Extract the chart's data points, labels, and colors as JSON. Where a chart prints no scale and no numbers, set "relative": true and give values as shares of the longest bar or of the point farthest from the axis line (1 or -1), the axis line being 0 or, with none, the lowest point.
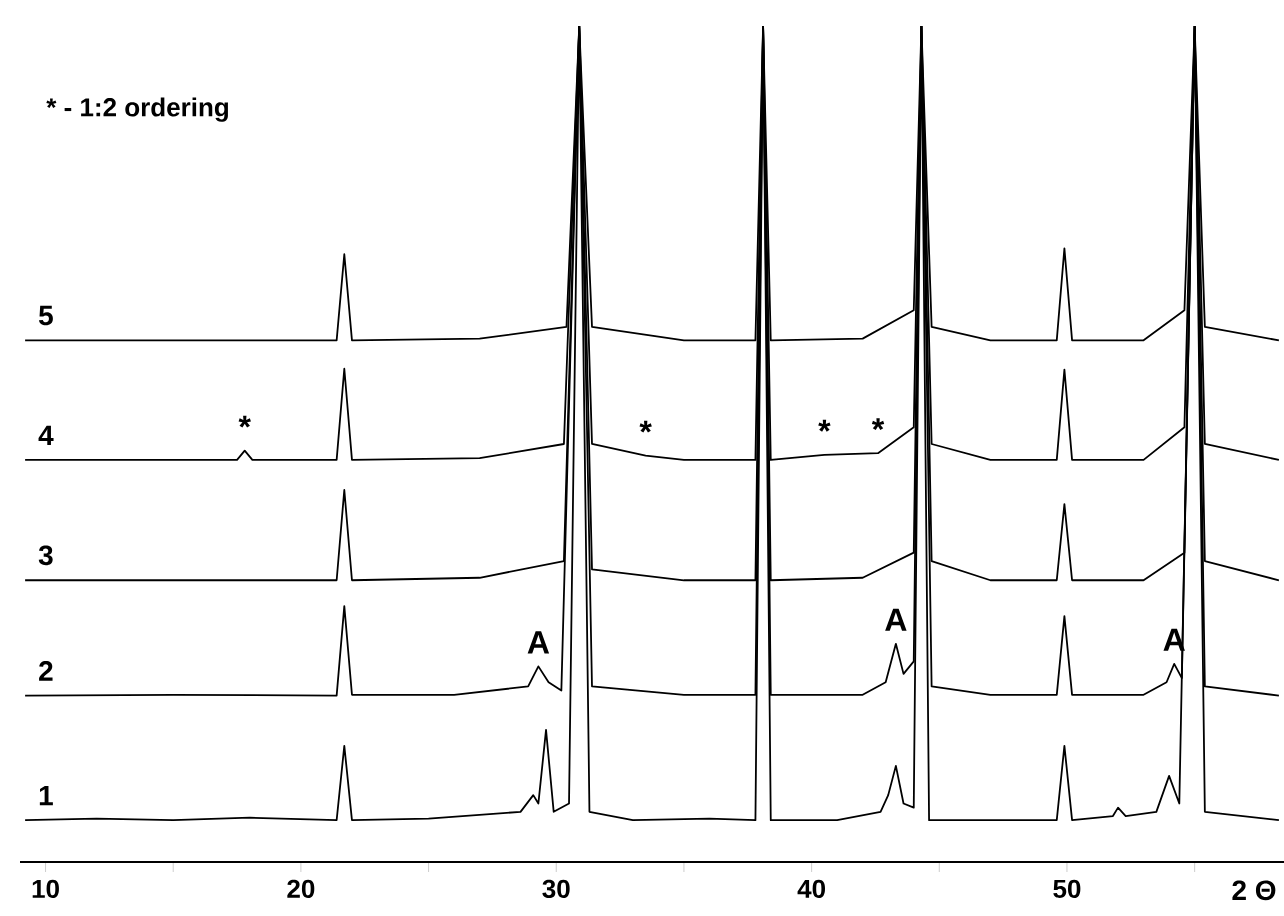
{
  "chart_data": {
    "type": "line",
    "relative": true,
    "xlabel": "2 Θ",
    "xlim": [
      9,
      58.5
    ],
    "xticks": [
      10,
      {
        "value": 15,
        "label": null
      },
      20,
      {
        "value": 25,
        "label": null
      },
      30,
      {
        "value": 35,
        "label": null
      },
      40,
      {
        "value": 45,
        "label": null
      },
      50,
      {
        "value": 55,
        "label": null
      }
    ],
    "grid": false,
    "marker": "none",
    "line_style": "solid",
    "annotations": [
      "* - 1:2 ordering",
      {
        "text": "*",
        "x": 17.8,
        "y": 0.492
      },
      {
        "text": "*",
        "x": 33.5,
        "y": 0.486
      },
      {
        "text": "*",
        "x": 40.5,
        "y": 0.487
      },
      {
        "text": "*",
        "x": 42.6,
        "y": 0.489
      },
      {
        "text": "A",
        "x": 29.3,
        "y": 0.234
      },
      {
        "text": "A",
        "x": 43.3,
        "y": 0.261
      },
      {
        "text": "A",
        "x": 54.2,
        "y": 0.237
      }
    ],
    "series": [
      {
        "name": "1",
        "color": "#000000",
        "x": [
          9.2,
          12,
          15,
          18,
          21.4,
          21.7,
          22.0,
          25,
          28.6,
          29.1,
          29.3,
          29.6,
          29.9,
          30.5,
          30.9,
          31.3,
          33,
          36,
          37.8,
          38.1,
          38.4,
          41,
          42.7,
          43.0,
          43.3,
          43.6,
          44.0,
          44.3,
          44.6,
          47,
          49.6,
          49.9,
          50.2,
          51.8,
          52.0,
          52.3,
          53.5,
          54.0,
          54.4,
          55.0,
          55.4,
          58.3
        ],
        "values": [
          0.05,
          0.052,
          0.05,
          0.053,
          0.05,
          0.139,
          0.05,
          0.052,
          0.06,
          0.08,
          0.07,
          0.158,
          0.06,
          0.07,
          1,
          0.06,
          0.05,
          0.052,
          0.05,
          1,
          0.05,
          0.05,
          0.06,
          0.08,
          0.115,
          0.07,
          0.065,
          1,
          0.05,
          0.05,
          0.05,
          0.139,
          0.05,
          0.055,
          0.065,
          0.055,
          0.06,
          0.103,
          0.07,
          1,
          0.06,
          0.05
        ]
      },
      {
        "name": "2",
        "color": "#000000",
        "x": [
          9.2,
          15,
          21.4,
          21.7,
          22.0,
          26,
          28.9,
          29.3,
          29.7,
          30.2,
          30.9,
          31.4,
          35,
          37.8,
          38.1,
          38.4,
          42,
          42.9,
          43.3,
          43.6,
          44.0,
          44.3,
          44.7,
          47,
          49.6,
          49.9,
          50.2,
          53,
          53.9,
          54.2,
          54.5,
          55.0,
          55.4,
          58.3
        ],
        "values": [
          0.199,
          0.2,
          0.199,
          0.306,
          0.2,
          0.2,
          0.21,
          0.234,
          0.215,
          0.205,
          1,
          0.21,
          0.2,
          0.2,
          1,
          0.2,
          0.2,
          0.215,
          0.261,
          0.225,
          0.24,
          1,
          0.21,
          0.2,
          0.2,
          0.294,
          0.2,
          0.2,
          0.215,
          0.237,
          0.22,
          1,
          0.21,
          0.199
        ]
      },
      {
        "name": "3",
        "color": "#000000",
        "x": [
          9.2,
          15,
          21.4,
          21.7,
          22.0,
          27,
          30.3,
          30.9,
          31.4,
          35,
          37.8,
          38.1,
          38.4,
          42,
          44.0,
          44.3,
          44.7,
          47,
          49.6,
          49.9,
          50.2,
          53,
          54.6,
          55.0,
          55.4,
          58.3
        ],
        "values": [
          0.337,
          0.337,
          0.337,
          0.445,
          0.337,
          0.34,
          0.36,
          1,
          0.35,
          0.337,
          0.337,
          1,
          0.337,
          0.34,
          0.37,
          1,
          0.36,
          0.337,
          0.337,
          0.428,
          0.337,
          0.337,
          0.37,
          1,
          0.36,
          0.337
        ]
      },
      {
        "name": "4",
        "color": "#000000",
        "x": [
          9.2,
          15,
          17.5,
          17.8,
          18.1,
          21.4,
          21.7,
          22.0,
          27,
          30.3,
          30.9,
          31.4,
          33.5,
          35,
          37.8,
          38.1,
          38.4,
          40.5,
          42.6,
          44.0,
          44.3,
          44.7,
          47,
          49.6,
          49.9,
          50.2,
          53,
          54.6,
          55.0,
          55.4,
          58.3
        ],
        "values": [
          0.481,
          0.481,
          0.481,
          0.492,
          0.481,
          0.481,
          0.59,
          0.481,
          0.483,
          0.5,
          1,
          0.5,
          0.486,
          0.481,
          0.481,
          1,
          0.481,
          0.487,
          0.489,
          0.52,
          1,
          0.5,
          0.481,
          0.481,
          0.589,
          0.481,
          0.481,
          0.52,
          1,
          0.5,
          0.481
        ]
      },
      {
        "name": "5",
        "color": "#000000",
        "x": [
          9.2,
          15,
          21.4,
          21.7,
          22.0,
          27,
          30.4,
          30.9,
          31.4,
          35,
          37.8,
          38.1,
          38.4,
          42,
          44.0,
          44.3,
          44.7,
          47,
          49.6,
          49.9,
          50.2,
          53,
          54.6,
          55.0,
          55.4,
          58.3
        ],
        "values": [
          0.624,
          0.624,
          0.624,
          0.727,
          0.624,
          0.626,
          0.64,
          1,
          0.64,
          0.624,
          0.624,
          1,
          0.624,
          0.626,
          0.66,
          1,
          0.64,
          0.624,
          0.624,
          0.734,
          0.624,
          0.624,
          0.66,
          1,
          0.64,
          0.624
        ]
      }
    ]
  }
}
